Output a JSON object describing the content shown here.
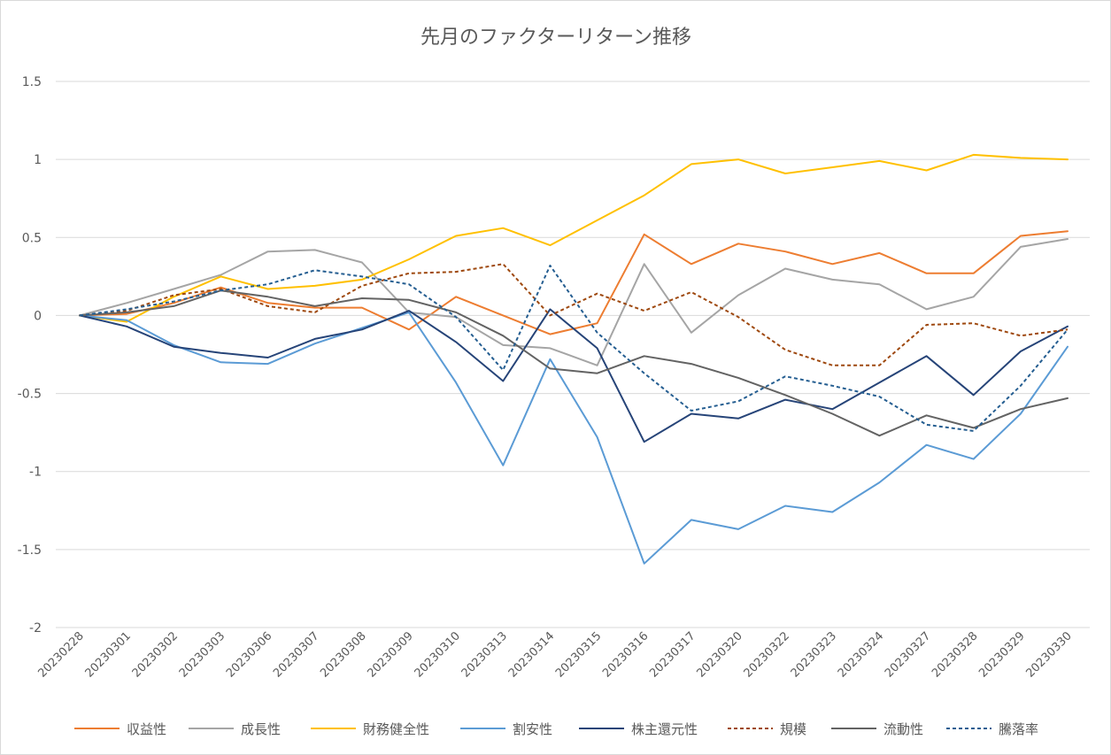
{
  "chart_data": {
    "type": "line",
    "title": "先月のファクターリターン推移",
    "xlabel": "",
    "ylabel": "",
    "ylim": [
      -2,
      1.5
    ],
    "yticks": [
      1.5,
      1,
      0.5,
      0,
      -0.5,
      -1,
      -1.5,
      -2
    ],
    "ytick_labels": [
      "1.5",
      "1",
      "0.5",
      "0",
      "-0.5",
      "-1",
      "-1.5",
      "-2"
    ],
    "grid": true,
    "legend_position": "bottom",
    "categories": [
      "20230228",
      "20230301",
      "20230302",
      "20230303",
      "20230306",
      "20230307",
      "20230308",
      "20230309",
      "20230310",
      "20230313",
      "20230314",
      "20230315",
      "20230316",
      "20230317",
      "20230320",
      "20230322",
      "20230323",
      "20230324",
      "20230327",
      "20230328",
      "20230329",
      "20230330"
    ],
    "series": [
      {
        "name": "収益性",
        "color": "#ed7d31",
        "dash": "solid",
        "values": [
          0,
          0.01,
          0.08,
          0.18,
          0.08,
          0.05,
          0.05,
          -0.09,
          0.12,
          0.0,
          -0.12,
          -0.05,
          0.52,
          0.33,
          0.46,
          0.41,
          0.33,
          0.4,
          0.27,
          0.27,
          0.51,
          0.54
        ]
      },
      {
        "name": "成長性",
        "color": "#a5a5a5",
        "dash": "solid",
        "values": [
          0,
          0.08,
          0.17,
          0.26,
          0.41,
          0.42,
          0.34,
          0.02,
          -0.01,
          -0.19,
          -0.21,
          -0.32,
          0.33,
          -0.11,
          0.13,
          0.3,
          0.23,
          0.2,
          0.04,
          0.12,
          0.44,
          0.49
        ]
      },
      {
        "name": "財務健全性",
        "color": "#ffc000",
        "dash": "solid",
        "values": [
          0,
          -0.04,
          0.12,
          0.25,
          0.17,
          0.19,
          0.23,
          0.36,
          0.51,
          0.56,
          0.45,
          0.61,
          0.77,
          0.97,
          1.0,
          0.91,
          0.95,
          0.99,
          0.93,
          1.03,
          1.01,
          1.0
        ]
      },
      {
        "name": "割安性",
        "color": "#5b9bd5",
        "dash": "solid",
        "values": [
          0,
          -0.03,
          -0.19,
          -0.3,
          -0.31,
          -0.18,
          -0.08,
          0.02,
          -0.43,
          -0.96,
          -0.28,
          -0.78,
          -1.59,
          -1.31,
          -1.37,
          -1.22,
          -1.26,
          -1.07,
          -0.83,
          -0.92,
          -0.63,
          -0.2
        ]
      },
      {
        "name": "株主還元性",
        "color": "#264478",
        "dash": "solid",
        "values": [
          0,
          -0.07,
          -0.2,
          -0.24,
          -0.27,
          -0.15,
          -0.09,
          0.03,
          -0.17,
          -0.42,
          0.04,
          -0.21,
          -0.81,
          -0.63,
          -0.66,
          -0.54,
          -0.6,
          -0.43,
          -0.26,
          -0.51,
          -0.23,
          -0.07
        ]
      },
      {
        "name": "規模",
        "color": "#9e480e",
        "dash": "dashed",
        "values": [
          0,
          0.03,
          0.13,
          0.17,
          0.06,
          0.02,
          0.19,
          0.27,
          0.28,
          0.33,
          0.0,
          0.14,
          0.03,
          0.15,
          -0.01,
          -0.22,
          -0.32,
          -0.32,
          -0.06,
          -0.05,
          -0.13,
          -0.09
        ]
      },
      {
        "name": "流動性",
        "color": "#636363",
        "dash": "solid",
        "values": [
          0,
          0.02,
          0.06,
          0.16,
          0.12,
          0.06,
          0.11,
          0.1,
          0.02,
          -0.13,
          -0.34,
          -0.37,
          -0.26,
          -0.31,
          -0.4,
          -0.51,
          -0.63,
          -0.77,
          -0.64,
          -0.72,
          -0.6,
          -0.53
        ]
      },
      {
        "name": "騰落率",
        "color": "#255e91",
        "dash": "dashed",
        "values": [
          0,
          0.04,
          0.09,
          0.16,
          0.2,
          0.29,
          0.25,
          0.2,
          -0.01,
          -0.35,
          0.32,
          -0.11,
          -0.37,
          -0.61,
          -0.55,
          -0.39,
          -0.45,
          -0.52,
          -0.7,
          -0.74,
          -0.45,
          -0.09
        ]
      }
    ]
  }
}
